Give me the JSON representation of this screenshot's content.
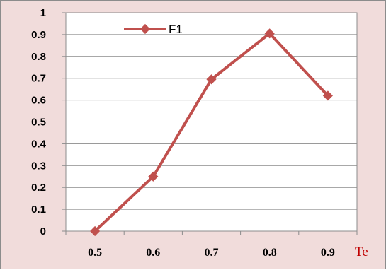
{
  "chart_data": {
    "type": "line",
    "x": [
      "0.5",
      "0.6",
      "0.7",
      "0.8",
      "0.9"
    ],
    "series": [
      {
        "name": "F1",
        "values": [
          0.0,
          0.25,
          0.695,
          0.905,
          0.62
        ]
      }
    ],
    "xlabel": "Te",
    "ylabel": "",
    "ylim": [
      0,
      1
    ],
    "yticks": [
      "0",
      "0.1",
      "0.2",
      "0.3",
      "0.4",
      "0.5",
      "0.6",
      "0.7",
      "0.8",
      "0.9",
      "1"
    ],
    "grid": "horizontal",
    "legend_position": "top-left",
    "colors": {
      "series": "#c0504d",
      "outer_background": "#f1dcdb",
      "plot_background": "#ffffff",
      "xlabel": "#c00000",
      "gridline": "#8c8c8c"
    }
  }
}
